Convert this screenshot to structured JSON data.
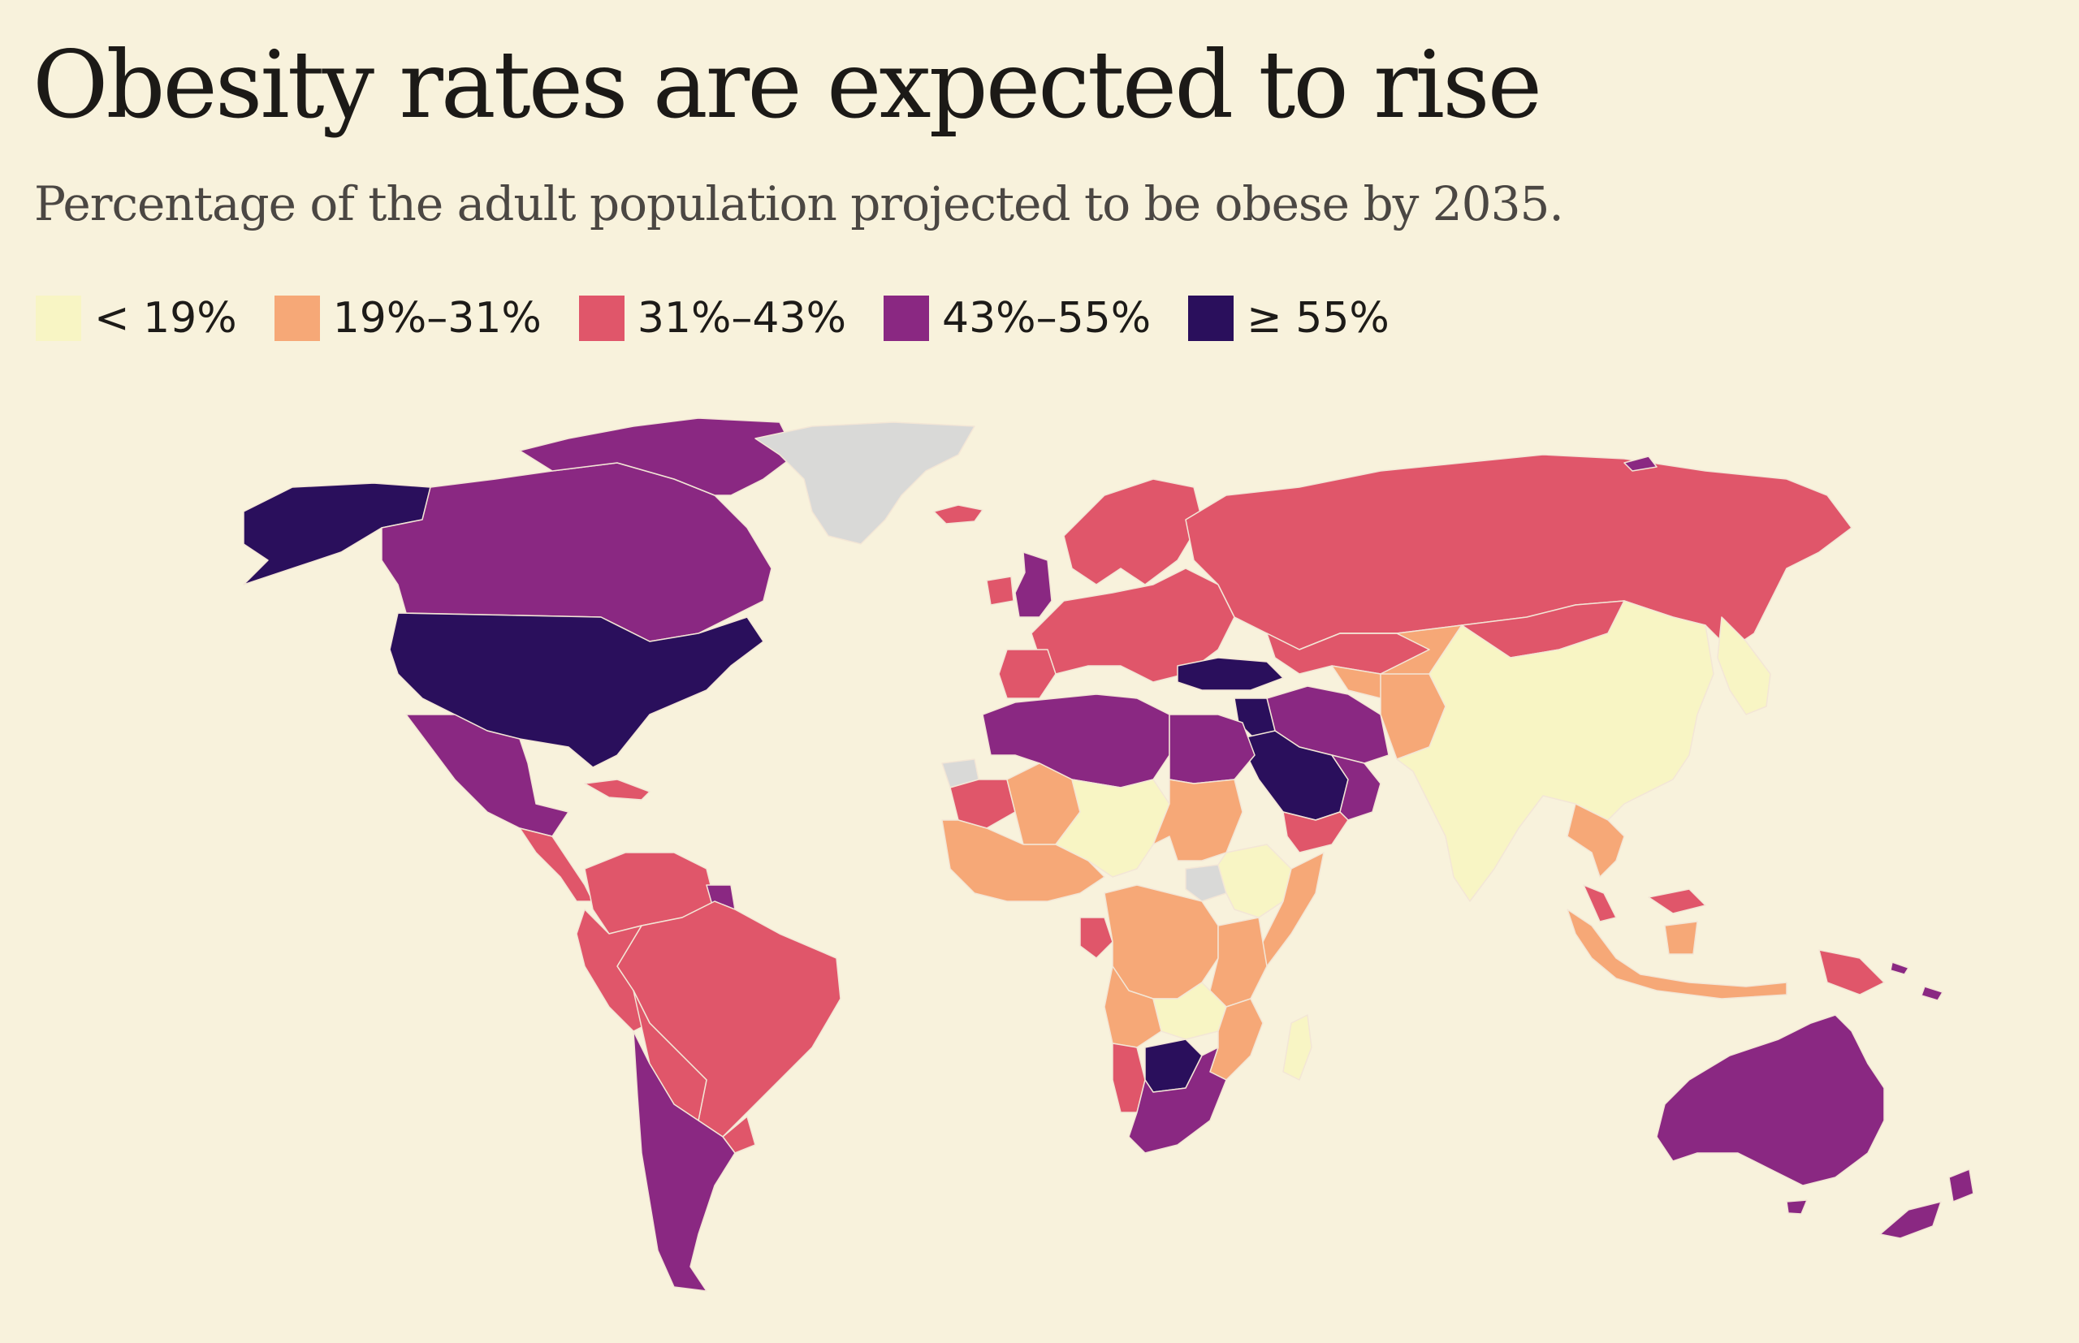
{
  "header": {
    "title": "Obesity rates are expected to rise",
    "subtitle": "Percentage of the adult population projected to be obese by 2035."
  },
  "legend": [
    {
      "label": "< 19%",
      "color": "#f8f5c4"
    },
    {
      "label": "19%–31%",
      "color": "#f6a877"
    },
    {
      "label": "31%–43%",
      "color": "#e0566a"
    },
    {
      "label": "43%–55%",
      "color": "#8a2882"
    },
    {
      "label": "≥ 55%",
      "color": "#2a0f5c"
    }
  ],
  "colors": {
    "background": "#f8f2dc",
    "no_data": "#d9d9d7",
    "border": "#f3e6d6"
  },
  "chart_data": {
    "type": "choropleth",
    "title": "Obesity rates are expected to rise",
    "subtitle": "Percentage of the adult population projected to be obese by 2035.",
    "legend_placement": "top-left",
    "bins": [
      "< 19%",
      "19%–31%",
      "31%–43%",
      "43%–55%",
      "≥ 55%"
    ],
    "regions": [
      {
        "name": "alaska",
        "bin": "≥ 55%"
      },
      {
        "name": "canada",
        "bin": "43%–55%"
      },
      {
        "name": "canada-islands",
        "bin": "43%–55%"
      },
      {
        "name": "greenland",
        "bin": "no data"
      },
      {
        "name": "iceland",
        "bin": "31%–43%"
      },
      {
        "name": "united-states",
        "bin": "≥ 55%"
      },
      {
        "name": "mexico",
        "bin": "43%–55%"
      },
      {
        "name": "central-america",
        "bin": "31%–43%"
      },
      {
        "name": "caribbean",
        "bin": "31%–43%"
      },
      {
        "name": "colombia-venezuela",
        "bin": "31%–43%"
      },
      {
        "name": "guianas",
        "bin": "43%–55%"
      },
      {
        "name": "brazil",
        "bin": "31%–43%"
      },
      {
        "name": "peru-ecuador",
        "bin": "31%–43%"
      },
      {
        "name": "bolivia-paraguay",
        "bin": "31%–43%"
      },
      {
        "name": "uruguay",
        "bin": "31%–43%"
      },
      {
        "name": "argentina-chile",
        "bin": "43%–55%"
      },
      {
        "name": "united-kingdom",
        "bin": "43%–55%"
      },
      {
        "name": "ireland",
        "bin": "31%–43%"
      },
      {
        "name": "europe",
        "bin": "31%–43%"
      },
      {
        "name": "scandinavia",
        "bin": "31%–43%"
      },
      {
        "name": "iberia",
        "bin": "31%–43%"
      },
      {
        "name": "russia",
        "bin": "31%–43%"
      },
      {
        "name": "turkey",
        "bin": "≥ 55%"
      },
      {
        "name": "caucasus-central-asia",
        "bin": "31%–43%"
      },
      {
        "name": "kazakhstan-south",
        "bin": "19%–31%"
      },
      {
        "name": "iran-iraq",
        "bin": "43%–55%"
      },
      {
        "name": "levant-jordan",
        "bin": "≥ 55%"
      },
      {
        "name": "saudi-arabia",
        "bin": "≥ 55%"
      },
      {
        "name": "gulf-oman",
        "bin": "43%–55%"
      },
      {
        "name": "yemen",
        "bin": "31%–43%"
      },
      {
        "name": "afghanistan-pakistan",
        "bin": "19%–31%"
      },
      {
        "name": "south-asia-china",
        "bin": "< 19%"
      },
      {
        "name": "mongolia",
        "bin": "31%–43%"
      },
      {
        "name": "korea-japan",
        "bin": "< 19%"
      },
      {
        "name": "southeast-asia",
        "bin": "19%–31%"
      },
      {
        "name": "malaysia",
        "bin": "31%–43%"
      },
      {
        "name": "indonesia",
        "bin": "19%–31%"
      },
      {
        "name": "papua-new-guinea",
        "bin": "31%–43%"
      },
      {
        "name": "pacific-islands",
        "bin": "43%–55%"
      },
      {
        "name": "australia",
        "bin": "43%–55%"
      },
      {
        "name": "new-zealand",
        "bin": "43%–55%"
      },
      {
        "name": "north-africa",
        "bin": "43%–55%"
      },
      {
        "name": "egypt",
        "bin": "43%–55%"
      },
      {
        "name": "western-sahara",
        "bin": "no data"
      },
      {
        "name": "mauritania",
        "bin": "31%–43%"
      },
      {
        "name": "sahel-west",
        "bin": "19%–31%"
      },
      {
        "name": "west-africa-coast",
        "bin": "19%–31%"
      },
      {
        "name": "nigeria-chad",
        "bin": "< 19%"
      },
      {
        "name": "sudan",
        "bin": "19%–31%"
      },
      {
        "name": "south-sudan",
        "bin": "no data"
      },
      {
        "name": "ethiopia",
        "bin": "< 19%"
      },
      {
        "name": "somalia",
        "bin": "19%–31%"
      },
      {
        "name": "gabon-eq-guinea",
        "bin": "31%–43%"
      },
      {
        "name": "congo-basin",
        "bin": "19%–31%"
      },
      {
        "name": "east-africa",
        "bin": "19%–31%"
      },
      {
        "name": "angola",
        "bin": "19%–31%"
      },
      {
        "name": "zambia",
        "bin": "< 19%"
      },
      {
        "name": "mozambique",
        "bin": "19%–31%"
      },
      {
        "name": "namibia",
        "bin": "31%–43%"
      },
      {
        "name": "botswana",
        "bin": "≥ 55%"
      },
      {
        "name": "south-africa",
        "bin": "43%–55%"
      },
      {
        "name": "madagascar",
        "bin": "< 19%"
      }
    ]
  }
}
